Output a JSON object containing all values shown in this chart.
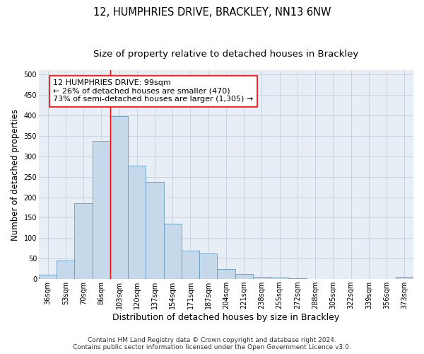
{
  "title1": "12, HUMPHRIES DRIVE, BRACKLEY, NN13 6NW",
  "title2": "Size of property relative to detached houses in Brackley",
  "xlabel": "Distribution of detached houses by size in Brackley",
  "ylabel": "Number of detached properties",
  "categories": [
    "36sqm",
    "53sqm",
    "70sqm",
    "86sqm",
    "103sqm",
    "120sqm",
    "137sqm",
    "154sqm",
    "171sqm",
    "187sqm",
    "204sqm",
    "221sqm",
    "238sqm",
    "255sqm",
    "272sqm",
    "288sqm",
    "305sqm",
    "322sqm",
    "339sqm",
    "356sqm",
    "373sqm"
  ],
  "values": [
    10,
    45,
    185,
    337,
    398,
    277,
    238,
    135,
    70,
    62,
    25,
    12,
    5,
    3,
    2,
    1,
    1,
    0,
    0,
    0,
    5
  ],
  "bar_color": "#c6d9ea",
  "bar_edge_color": "#6699bb",
  "grid_color": "#c8d4e0",
  "background_color": "#e8eef5",
  "annotation_box_text": "12 HUMPHRIES DRIVE: 99sqm\n← 26% of detached houses are smaller (470)\n73% of semi-detached houses are larger (1,305) →",
  "vline_x": 3.5,
  "ylim": [
    0,
    510
  ],
  "yticks": [
    0,
    50,
    100,
    150,
    200,
    250,
    300,
    350,
    400,
    450,
    500
  ],
  "footer1": "Contains HM Land Registry data © Crown copyright and database right 2024.",
  "footer2": "Contains public sector information licensed under the Open Government Licence v3.0.",
  "title1_fontsize": 10.5,
  "title2_fontsize": 9.5,
  "xlabel_fontsize": 9,
  "ylabel_fontsize": 8.5,
  "tick_fontsize": 7,
  "ann_fontsize": 8,
  "footer_fontsize": 6.5
}
